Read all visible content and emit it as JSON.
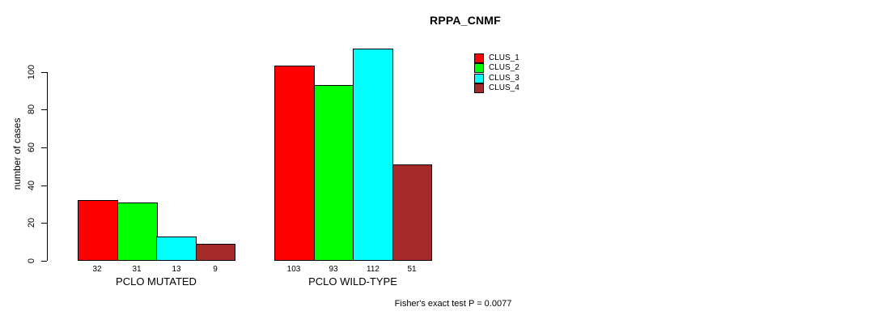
{
  "title": "RPPA_CNMF",
  "ylabel": "number of cases",
  "footer": "Fisher's exact test P = 0.0077",
  "chart_data": {
    "type": "bar",
    "title": "RPPA_CNMF",
    "ylabel": "number of cases",
    "xlabel": "",
    "ylim": [
      0,
      117
    ],
    "yticks": [
      0,
      20,
      40,
      60,
      80,
      100
    ],
    "grid": false,
    "legend_position": "top-right",
    "categories": [
      "PCLO MUTATED",
      "PCLO WILD-TYPE"
    ],
    "series": [
      {
        "name": "CLUS_1",
        "color": "#ff0000",
        "values": [
          32,
          103
        ]
      },
      {
        "name": "CLUS_2",
        "color": "#00ff00",
        "values": [
          31,
          93
        ]
      },
      {
        "name": "CLUS_3",
        "color": "#00ffff",
        "values": [
          13,
          112
        ]
      },
      {
        "name": "CLUS_4",
        "color": "#a52a2a",
        "values": [
          9,
          51
        ]
      }
    ],
    "bar_labels": [
      [
        32,
        31,
        13,
        9
      ],
      [
        103,
        93,
        112,
        51
      ]
    ],
    "annotation": "Fisher's exact test P = 0.0077"
  }
}
